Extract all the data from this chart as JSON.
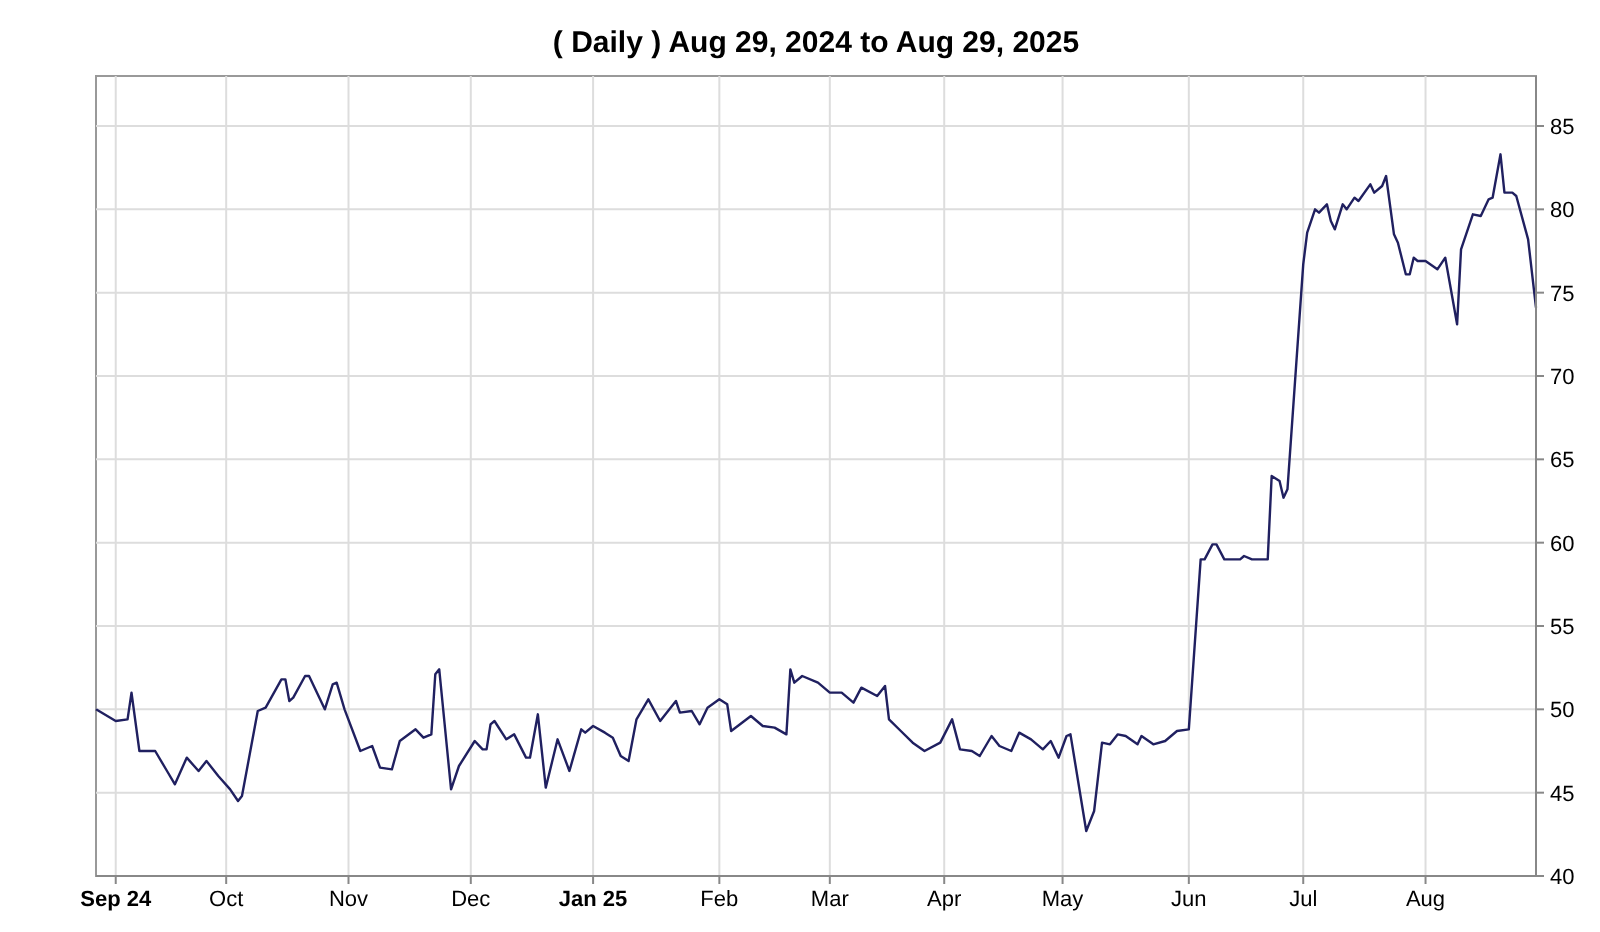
{
  "chart_data": {
    "type": "line",
    "title": "( Daily ) Aug 29, 2024 to Aug 29, 2025",
    "x": [
      "2024-08-29",
      "2024-09-03",
      "2024-09-06",
      "2024-09-07",
      "2024-09-09",
      "2024-09-13",
      "2024-09-16",
      "2024-09-18",
      "2024-09-21",
      "2024-09-24",
      "2024-09-26",
      "2024-09-29",
      "2024-10-02",
      "2024-10-04",
      "2024-10-05",
      "2024-10-09",
      "2024-10-11",
      "2024-10-15",
      "2024-10-16",
      "2024-10-17",
      "2024-10-18",
      "2024-10-21",
      "2024-10-22",
      "2024-10-26",
      "2024-10-28",
      "2024-10-29",
      "2024-10-31",
      "2024-11-04",
      "2024-11-07",
      "2024-11-09",
      "2024-11-12",
      "2024-11-14",
      "2024-11-18",
      "2024-11-20",
      "2024-11-22",
      "2024-11-23",
      "2024-11-24",
      "2024-11-27",
      "2024-11-29",
      "2024-12-03",
      "2024-12-05",
      "2024-12-06",
      "2024-12-07",
      "2024-12-08",
      "2024-12-11",
      "2024-12-13",
      "2024-12-16",
      "2024-12-17",
      "2024-12-19",
      "2024-12-21",
      "2024-12-24",
      "2024-12-27",
      "2024-12-30",
      "2024-12-31",
      "2025-01-02",
      "2025-01-05",
      "2025-01-07",
      "2025-01-09",
      "2025-01-11",
      "2025-01-13",
      "2025-01-16",
      "2025-01-19",
      "2025-01-23",
      "2025-01-24",
      "2025-01-27",
      "2025-01-29",
      "2025-01-31",
      "2025-02-03",
      "2025-02-05",
      "2025-02-06",
      "2025-02-11",
      "2025-02-14",
      "2025-02-17",
      "2025-02-20",
      "2025-02-21",
      "2025-02-22",
      "2025-02-24",
      "2025-02-28",
      "2025-03-03",
      "2025-03-06",
      "2025-03-09",
      "2025-03-11",
      "2025-03-15",
      "2025-03-17",
      "2025-03-18",
      "2025-03-21",
      "2025-03-24",
      "2025-03-27",
      "2025-03-31",
      "2025-04-03",
      "2025-04-05",
      "2025-04-08",
      "2025-04-10",
      "2025-04-13",
      "2025-04-15",
      "2025-04-18",
      "2025-04-20",
      "2025-04-23",
      "2025-04-26",
      "2025-04-28",
      "2025-04-30",
      "2025-05-02",
      "2025-05-03",
      "2025-05-07",
      "2025-05-09",
      "2025-05-11",
      "2025-05-13",
      "2025-05-15",
      "2025-05-17",
      "2025-05-20",
      "2025-05-21",
      "2025-05-24",
      "2025-05-27",
      "2025-05-30",
      "2025-06-02",
      "2025-06-05",
      "2025-06-06",
      "2025-06-08",
      "2025-06-09",
      "2025-06-11",
      "2025-06-15",
      "2025-06-16",
      "2025-06-18",
      "2025-06-22",
      "2025-06-23",
      "2025-06-25",
      "2025-06-26",
      "2025-06-27",
      "2025-07-01",
      "2025-07-02",
      "2025-07-04",
      "2025-07-05",
      "2025-07-07",
      "2025-07-08",
      "2025-07-09",
      "2025-07-11",
      "2025-07-12",
      "2025-07-14",
      "2025-07-15",
      "2025-07-18",
      "2025-07-19",
      "2025-07-21",
      "2025-07-22",
      "2025-07-24",
      "2025-07-25",
      "2025-07-27",
      "2025-07-28",
      "2025-07-29",
      "2025-07-30",
      "2025-08-01",
      "2025-08-04",
      "2025-08-06",
      "2025-08-09",
      "2025-08-10",
      "2025-08-13",
      "2025-08-15",
      "2025-08-17",
      "2025-08-18",
      "2025-08-20",
      "2025-08-21",
      "2025-08-23",
      "2025-08-24",
      "2025-08-27",
      "2025-08-29"
    ],
    "series": [
      {
        "color": "#202060",
        "values": [
          50.0,
          49.3,
          49.4,
          51.0,
          47.5,
          47.5,
          46.3,
          45.5,
          47.1,
          46.3,
          46.9,
          46.0,
          45.2,
          44.5,
          44.8,
          49.9,
          50.1,
          51.8,
          51.8,
          50.5,
          50.7,
          52.0,
          52.0,
          50.0,
          51.5,
          51.6,
          50.0,
          47.5,
          47.8,
          46.5,
          46.4,
          48.1,
          48.8,
          48.3,
          48.5,
          52.1,
          52.4,
          45.2,
          46.6,
          48.1,
          47.6,
          47.6,
          49.1,
          49.3,
          48.2,
          48.5,
          47.1,
          47.1,
          49.7,
          45.3,
          48.2,
          46.3,
          48.8,
          48.6,
          49.0,
          48.6,
          48.3,
          47.2,
          46.9,
          49.4,
          50.6,
          49.3,
          50.5,
          49.8,
          49.9,
          49.1,
          50.1,
          50.6,
          50.3,
          48.7,
          49.6,
          49.0,
          48.9,
          48.5,
          52.4,
          51.6,
          52.0,
          51.6,
          51.0,
          51.0,
          50.4,
          51.3,
          50.8,
          51.4,
          49.4,
          48.7,
          48.0,
          47.5,
          48.0,
          49.4,
          47.6,
          47.5,
          47.2,
          48.4,
          47.8,
          47.5,
          48.6,
          48.2,
          47.6,
          48.1,
          47.1,
          48.4,
          48.5,
          42.7,
          43.9,
          48.0,
          47.9,
          48.5,
          48.4,
          47.9,
          48.4,
          47.9,
          48.1,
          48.7,
          48.8,
          59.0,
          59.0,
          59.9,
          59.9,
          59.0,
          59.0,
          59.2,
          59.0,
          59.0,
          64.0,
          63.7,
          62.7,
          63.2,
          76.7,
          78.6,
          80.0,
          79.8,
          80.3,
          79.3,
          78.8,
          80.3,
          80.0,
          80.7,
          80.5,
          81.5,
          81.0,
          81.4,
          82.0,
          78.5,
          78.0,
          76.1,
          76.1,
          77.1,
          76.9,
          76.9,
          76.4,
          77.1,
          73.1,
          77.6,
          79.7,
          79.6,
          80.6,
          80.7,
          83.3,
          81.0,
          81.0,
          80.8,
          78.2,
          74.1
        ]
      }
    ],
    "xlim": [
      "2024-08-29",
      "2025-08-29"
    ],
    "xticks": [
      {
        "value": "2024-09-03",
        "label": "Sep 24"
      },
      {
        "value": "2024-10-01",
        "label": "Oct"
      },
      {
        "value": "2024-11-01",
        "label": "Nov"
      },
      {
        "value": "2024-12-02",
        "label": "Dec"
      },
      {
        "value": "2025-01-02",
        "label": "Jan 25"
      },
      {
        "value": "2025-02-03",
        "label": "Feb"
      },
      {
        "value": "2025-03-03",
        "label": "Mar"
      },
      {
        "value": "2025-04-01",
        "label": "Apr"
      },
      {
        "value": "2025-05-01",
        "label": "May"
      },
      {
        "value": "2025-06-02",
        "label": "Jun"
      },
      {
        "value": "2025-07-01",
        "label": "Jul"
      },
      {
        "value": "2025-08-01",
        "label": "Aug"
      }
    ],
    "ylim": [
      40,
      88
    ],
    "yticks": [
      40,
      45,
      50,
      55,
      60,
      65,
      70,
      75,
      80,
      85
    ],
    "grid": true,
    "marker": "none",
    "line_style": "solid"
  }
}
